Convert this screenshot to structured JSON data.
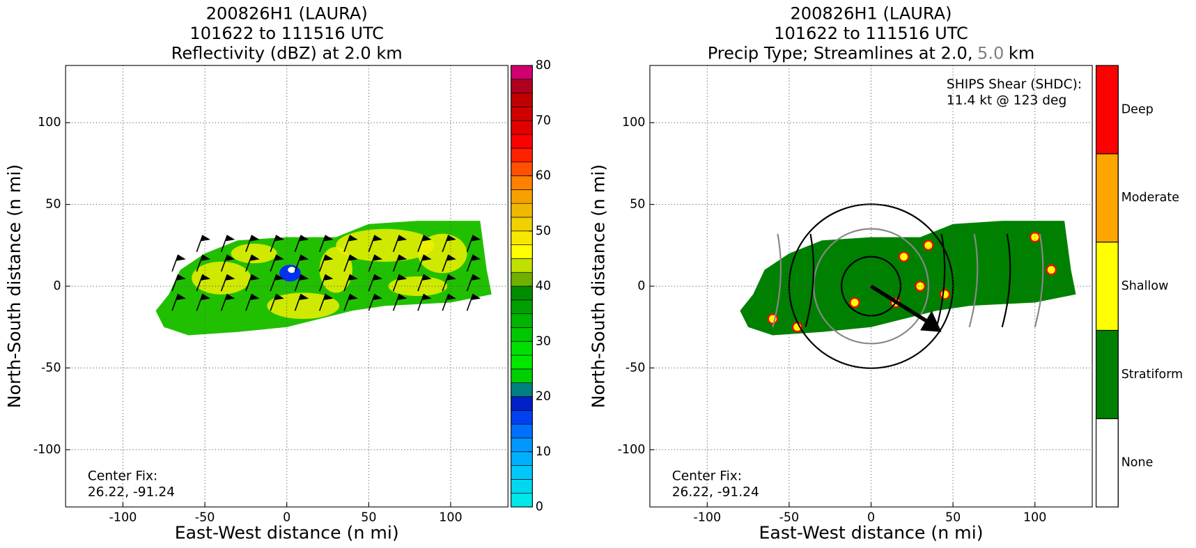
{
  "chart_data": [
    {
      "type": "heatmap",
      "title": [
        "200826H1 (LAURA)",
        "101622 to 111516 UTC",
        "Reflectivity (dBZ) at 2.0 km"
      ],
      "x_label": "East-West distance (n mi)",
      "y_label": "North-South distance (n mi)",
      "xlim": [
        -135,
        135
      ],
      "ylim": [
        -135,
        135
      ],
      "xticks": [
        -100,
        -50,
        0,
        50,
        100
      ],
      "yticks": [
        -100,
        -50,
        0,
        50,
        100
      ],
      "grid": true,
      "annotations": [
        "Center Fix:",
        "26.22, -91.24"
      ],
      "colorbar": {
        "lim": [
          0,
          80
        ],
        "ticks": [
          0,
          10,
          20,
          30,
          40,
          50,
          60,
          70,
          80
        ],
        "colors": [
          "#00e8e8",
          "#00d8f0",
          "#00c8f8",
          "#00b0ff",
          "#0098ff",
          "#0070ff",
          "#0040f0",
          "#0020c8",
          "#008080",
          "#00d000",
          "#00e800",
          "#00e000",
          "#00c800",
          "#00b400",
          "#00a000",
          "#008c00",
          "#70b000",
          "#c0e000",
          "#ffff00",
          "#f8e800",
          "#f0d000",
          "#f0b800",
          "#f8a000",
          "#ff8000",
          "#ff5000",
          "#ff2000",
          "#ff0000",
          "#e00000",
          "#d00000",
          "#c00000",
          "#b00020",
          "#d00070"
        ]
      }
    },
    {
      "type": "category_map",
      "title": [
        "200826H1 (LAURA)",
        "101622 to 111516 UTC",
        [
          "Precip Type; Streamlines at 2.0,",
          "5.0",
          "km"
        ]
      ],
      "x_label": "East-West distance (n mi)",
      "y_label": "North-South distance (n mi)",
      "xlim": [
        -135,
        135
      ],
      "ylim": [
        -135,
        135
      ],
      "xticks": [
        -100,
        -50,
        0,
        50,
        100
      ],
      "yticks": [
        -100,
        -50,
        0,
        50,
        100
      ],
      "grid": true,
      "annotations": [
        "Center Fix:",
        "26.22, -91.24"
      ],
      "shear_label": [
        "SHIPS Shear (SHDC):",
        "11.4 kt @ 123 deg"
      ],
      "colorbar": {
        "categories": [
          "None",
          "Stratiform",
          "Shallow",
          "Moderate",
          "Deep"
        ],
        "colors": [
          "#ffffff",
          "#008000",
          "#ffff00",
          "#ffa500",
          "#ff0000"
        ]
      }
    }
  ]
}
